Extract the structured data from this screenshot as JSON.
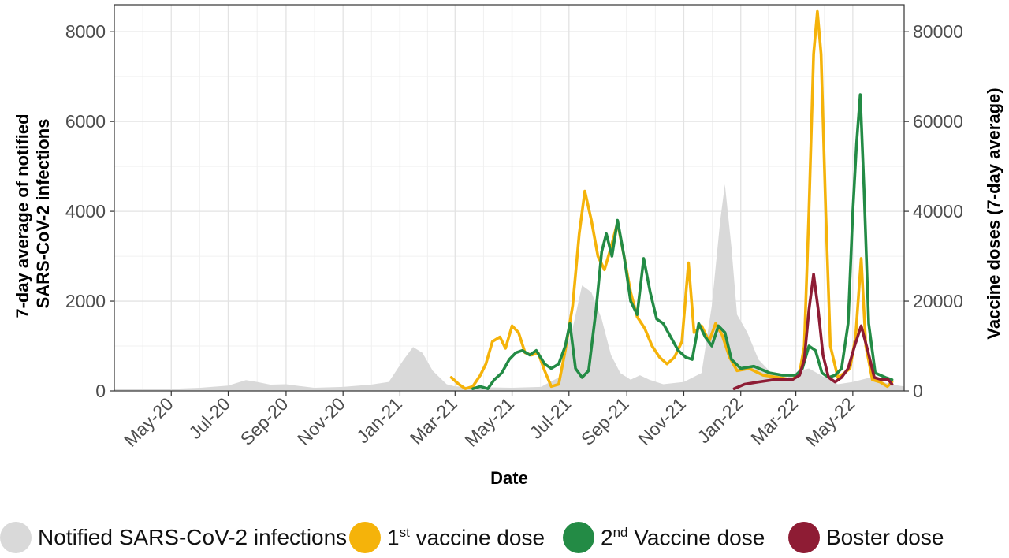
{
  "chart_data": {
    "type": "area+line",
    "xlabel": "Date",
    "ylabel_left": "7-day average of notified SARS-CoV-2 infections",
    "ylabel_left_lines": [
      "7-day average of notified",
      "SARS-CoV-2 infections"
    ],
    "ylabel_right": "Vaccine doses (7-day average)",
    "x_range": [
      "2020-03-01",
      "2022-06-25"
    ],
    "ylim_left": [
      0,
      8600
    ],
    "ylim_right": [
      0,
      86000
    ],
    "grid": true,
    "legend_position": "bottom",
    "x_ticks": [
      {
        "date": "2020-05-01",
        "label": "May-20"
      },
      {
        "date": "2020-07-01",
        "label": "Jul-20"
      },
      {
        "date": "2020-09-01",
        "label": "Sep-20"
      },
      {
        "date": "2020-11-01",
        "label": "Nov-20"
      },
      {
        "date": "2021-01-01",
        "label": "Jan-21"
      },
      {
        "date": "2021-03-01",
        "label": "Mar-21"
      },
      {
        "date": "2021-05-01",
        "label": "May-21"
      },
      {
        "date": "2021-07-01",
        "label": "Jul-21"
      },
      {
        "date": "2021-09-01",
        "label": "Sep-21"
      },
      {
        "date": "2021-11-01",
        "label": "Nov-21"
      },
      {
        "date": "2022-01-01",
        "label": "Jan-22"
      },
      {
        "date": "2022-03-01",
        "label": "Mar-22"
      },
      {
        "date": "2022-05-01",
        "label": "May-22"
      }
    ],
    "y_ticks_left": [
      0,
      2000,
      4000,
      6000,
      8000
    ],
    "y_tick_labels_left": [
      "0",
      "2000",
      "4000",
      "6000",
      "8000"
    ],
    "y_ticks_right": [
      0,
      20000,
      40000,
      60000,
      80000
    ],
    "y_tick_labels_right": [
      "0",
      "20000",
      "40000",
      "60000",
      "80000"
    ],
    "series": [
      {
        "name": "Notified SARS-CoV-2 infections",
        "axis": "left",
        "style": "area",
        "color": "#d9d9d9",
        "points": [
          [
            "2020-03-01",
            50
          ],
          [
            "2020-04-01",
            40
          ],
          [
            "2020-05-01",
            45
          ],
          [
            "2020-06-01",
            70
          ],
          [
            "2020-07-01",
            120
          ],
          [
            "2020-07-20",
            240
          ],
          [
            "2020-08-01",
            200
          ],
          [
            "2020-08-15",
            140
          ],
          [
            "2020-09-01",
            150
          ],
          [
            "2020-09-15",
            110
          ],
          [
            "2020-10-01",
            70
          ],
          [
            "2020-11-01",
            90
          ],
          [
            "2020-12-01",
            140
          ],
          [
            "2020-12-20",
            200
          ],
          [
            "2021-01-05",
            700
          ],
          [
            "2021-01-15",
            980
          ],
          [
            "2021-01-25",
            850
          ],
          [
            "2021-02-05",
            450
          ],
          [
            "2021-02-20",
            150
          ],
          [
            "2021-03-01",
            100
          ],
          [
            "2021-04-01",
            80
          ],
          [
            "2021-05-01",
            70
          ],
          [
            "2021-06-01",
            90
          ],
          [
            "2021-06-20",
            300
          ],
          [
            "2021-07-05",
            1400
          ],
          [
            "2021-07-15",
            2350
          ],
          [
            "2021-07-25",
            2200
          ],
          [
            "2021-08-05",
            1600
          ],
          [
            "2021-08-15",
            800
          ],
          [
            "2021-08-25",
            400
          ],
          [
            "2021-09-05",
            250
          ],
          [
            "2021-09-15",
            350
          ],
          [
            "2021-09-25",
            250
          ],
          [
            "2021-10-10",
            150
          ],
          [
            "2021-11-01",
            200
          ],
          [
            "2021-11-20",
            400
          ],
          [
            "2021-12-01",
            1900
          ],
          [
            "2021-12-10",
            3800
          ],
          [
            "2021-12-15",
            4600
          ],
          [
            "2021-12-22",
            3200
          ],
          [
            "2021-12-28",
            1700
          ],
          [
            "2022-01-08",
            1300
          ],
          [
            "2022-01-20",
            700
          ],
          [
            "2022-02-05",
            350
          ],
          [
            "2022-02-20",
            300
          ],
          [
            "2022-03-05",
            450
          ],
          [
            "2022-03-15",
            500
          ],
          [
            "2022-04-01",
            300
          ],
          [
            "2022-04-15",
            150
          ],
          [
            "2022-05-01",
            200
          ],
          [
            "2022-05-20",
            300
          ],
          [
            "2022-06-10",
            150
          ],
          [
            "2022-06-25",
            100
          ]
        ]
      },
      {
        "name": "1st vaccine dose",
        "axis": "right",
        "style": "line",
        "color": "#f5b30a",
        "points": [
          [
            "2021-02-25",
            3000
          ],
          [
            "2021-03-05",
            1500
          ],
          [
            "2021-03-12",
            500
          ],
          [
            "2021-03-20",
            1000
          ],
          [
            "2021-03-28",
            3500
          ],
          [
            "2021-04-03",
            6000
          ],
          [
            "2021-04-10",
            11000
          ],
          [
            "2021-04-18",
            12000
          ],
          [
            "2021-04-24",
            9500
          ],
          [
            "2021-05-01",
            14500
          ],
          [
            "2021-05-08",
            13000
          ],
          [
            "2021-05-15",
            8500
          ],
          [
            "2021-05-22",
            8000
          ],
          [
            "2021-05-29",
            8500
          ],
          [
            "2021-06-05",
            4500
          ],
          [
            "2021-06-12",
            1000
          ],
          [
            "2021-06-20",
            1500
          ],
          [
            "2021-06-27",
            9000
          ],
          [
            "2021-07-05",
            19000
          ],
          [
            "2021-07-12",
            35000
          ],
          [
            "2021-07-18",
            44500
          ],
          [
            "2021-07-25",
            38000
          ],
          [
            "2021-08-01",
            30000
          ],
          [
            "2021-08-08",
            27000
          ],
          [
            "2021-08-15",
            32000
          ],
          [
            "2021-08-22",
            37500
          ],
          [
            "2021-08-29",
            30000
          ],
          [
            "2021-09-05",
            22000
          ],
          [
            "2021-09-12",
            16500
          ],
          [
            "2021-09-20",
            14000
          ],
          [
            "2021-09-28",
            10000
          ],
          [
            "2021-10-06",
            7500
          ],
          [
            "2021-10-14",
            6000
          ],
          [
            "2021-10-22",
            7500
          ],
          [
            "2021-10-30",
            11000
          ],
          [
            "2021-11-06",
            28500
          ],
          [
            "2021-11-12",
            13000
          ],
          [
            "2021-11-20",
            14500
          ],
          [
            "2021-11-28",
            11000
          ],
          [
            "2021-12-05",
            15000
          ],
          [
            "2021-12-12",
            12500
          ],
          [
            "2021-12-20",
            7500
          ],
          [
            "2021-12-28",
            4500
          ],
          [
            "2022-01-10",
            5000
          ],
          [
            "2022-01-25",
            3500
          ],
          [
            "2022-02-10",
            3000
          ],
          [
            "2022-02-25",
            2500
          ],
          [
            "2022-03-05",
            4000
          ],
          [
            "2022-03-10",
            10000
          ],
          [
            "2022-03-15",
            40000
          ],
          [
            "2022-03-20",
            75000
          ],
          [
            "2022-03-24",
            84500
          ],
          [
            "2022-03-28",
            75000
          ],
          [
            "2022-04-02",
            40000
          ],
          [
            "2022-04-07",
            10000
          ],
          [
            "2022-04-15",
            3000
          ],
          [
            "2022-04-22",
            4000
          ],
          [
            "2022-04-28",
            5000
          ],
          [
            "2022-05-04",
            12000
          ],
          [
            "2022-05-10",
            29500
          ],
          [
            "2022-05-15",
            10000
          ],
          [
            "2022-05-22",
            2500
          ],
          [
            "2022-05-30",
            2000
          ],
          [
            "2022-06-07",
            1000
          ],
          [
            "2022-06-12",
            2000
          ]
        ]
      },
      {
        "name": "2nd Vaccine dose",
        "axis": "right",
        "style": "line",
        "color": "#238b45",
        "points": [
          [
            "2021-03-20",
            500
          ],
          [
            "2021-03-28",
            1000
          ],
          [
            "2021-04-05",
            500
          ],
          [
            "2021-04-12",
            2500
          ],
          [
            "2021-04-20",
            4000
          ],
          [
            "2021-04-28",
            7000
          ],
          [
            "2021-05-05",
            8500
          ],
          [
            "2021-05-12",
            9000
          ],
          [
            "2021-05-20",
            8000
          ],
          [
            "2021-05-27",
            9000
          ],
          [
            "2021-06-05",
            6000
          ],
          [
            "2021-06-12",
            5000
          ],
          [
            "2021-06-20",
            6000
          ],
          [
            "2021-06-27",
            10000
          ],
          [
            "2021-07-02",
            15000
          ],
          [
            "2021-07-08",
            5000
          ],
          [
            "2021-07-15",
            3000
          ],
          [
            "2021-07-22",
            4500
          ],
          [
            "2021-07-30",
            18000
          ],
          [
            "2021-08-05",
            31000
          ],
          [
            "2021-08-10",
            35000
          ],
          [
            "2021-08-16",
            30000
          ],
          [
            "2021-08-22",
            38000
          ],
          [
            "2021-08-29",
            30000
          ],
          [
            "2021-09-05",
            20000
          ],
          [
            "2021-09-12",
            17000
          ],
          [
            "2021-09-19",
            29500
          ],
          [
            "2021-09-26",
            22000
          ],
          [
            "2021-10-03",
            16000
          ],
          [
            "2021-10-10",
            15000
          ],
          [
            "2021-10-18",
            12000
          ],
          [
            "2021-10-26",
            9000
          ],
          [
            "2021-11-03",
            7500
          ],
          [
            "2021-11-10",
            7000
          ],
          [
            "2021-11-17",
            15000
          ],
          [
            "2021-11-24",
            12000
          ],
          [
            "2021-12-01",
            10000
          ],
          [
            "2021-12-08",
            14500
          ],
          [
            "2021-12-15",
            13000
          ],
          [
            "2021-12-22",
            7000
          ],
          [
            "2022-01-01",
            5000
          ],
          [
            "2022-01-15",
            5500
          ],
          [
            "2022-02-01",
            4000
          ],
          [
            "2022-02-15",
            3500
          ],
          [
            "2022-03-01",
            3500
          ],
          [
            "2022-03-08",
            5000
          ],
          [
            "2022-03-15",
            10000
          ],
          [
            "2022-03-22",
            9000
          ],
          [
            "2022-03-29",
            4000
          ],
          [
            "2022-04-05",
            3000
          ],
          [
            "2022-04-12",
            3500
          ],
          [
            "2022-04-19",
            5000
          ],
          [
            "2022-04-26",
            15000
          ],
          [
            "2022-05-01",
            40000
          ],
          [
            "2022-05-05",
            55000
          ],
          [
            "2022-05-09",
            66000
          ],
          [
            "2022-05-13",
            45000
          ],
          [
            "2022-05-18",
            15000
          ],
          [
            "2022-05-25",
            4000
          ],
          [
            "2022-06-05",
            3000
          ],
          [
            "2022-06-12",
            2500
          ]
        ]
      },
      {
        "name": "Boster dose",
        "axis": "right",
        "style": "line",
        "color": "#8e1c34",
        "points": [
          [
            "2021-12-25",
            500
          ],
          [
            "2022-01-05",
            1500
          ],
          [
            "2022-01-20",
            2000
          ],
          [
            "2022-02-05",
            2500
          ],
          [
            "2022-02-25",
            2500
          ],
          [
            "2022-03-05",
            3500
          ],
          [
            "2022-03-10",
            7000
          ],
          [
            "2022-03-15",
            18000
          ],
          [
            "2022-03-20",
            26000
          ],
          [
            "2022-03-25",
            18000
          ],
          [
            "2022-03-30",
            8000
          ],
          [
            "2022-04-05",
            3000
          ],
          [
            "2022-04-12",
            2000
          ],
          [
            "2022-04-19",
            3000
          ],
          [
            "2022-04-26",
            5000
          ],
          [
            "2022-05-03",
            10000
          ],
          [
            "2022-05-10",
            14500
          ],
          [
            "2022-05-17",
            9000
          ],
          [
            "2022-05-24",
            3000
          ],
          [
            "2022-06-01",
            2500
          ],
          [
            "2022-06-08",
            2500
          ],
          [
            "2022-06-12",
            1500
          ]
        ]
      }
    ]
  },
  "legend": {
    "items": [
      {
        "pre": "Notified SARS-CoV-2 infections",
        "sup": "",
        "post": "",
        "color": "#d9d9d9"
      },
      {
        "pre": "1",
        "sup": "st",
        "post": " vaccine dose",
        "color": "#f5b30a"
      },
      {
        "pre": "2",
        "sup": "nd",
        "post": " Vaccine dose",
        "color": "#238b45"
      },
      {
        "pre": "Boster dose",
        "sup": "",
        "post": "",
        "color": "#8e1c34"
      }
    ]
  }
}
